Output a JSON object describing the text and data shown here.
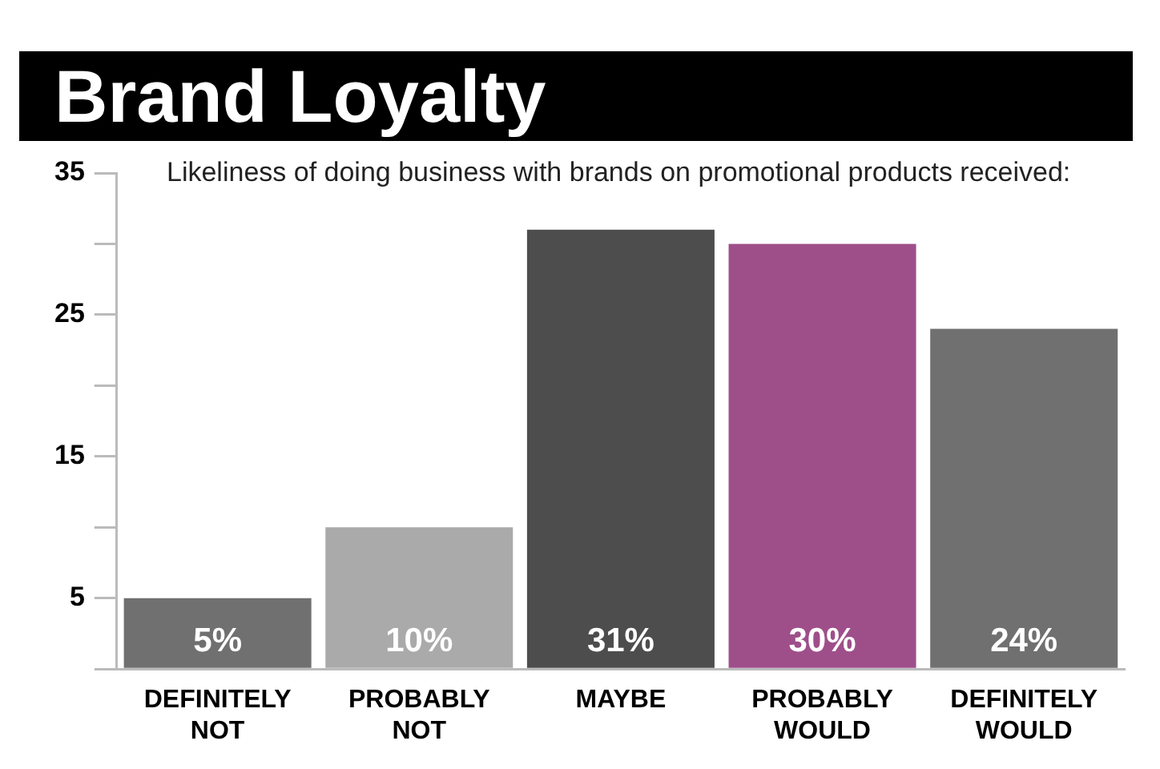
{
  "chart_data": {
    "type": "bar",
    "title": "Brand Loyalty",
    "subtitle": "Likeliness of doing business with brands on promotional products received:",
    "categories": [
      "DEFINITELY NOT",
      "PROBABLY NOT",
      "MAYBE",
      "PROBABLY WOULD",
      "DEFINITELY WOULD"
    ],
    "values": [
      5,
      10,
      31,
      30,
      24
    ],
    "colors": [
      "#707070",
      "#aaaaaa",
      "#4d4d4d",
      "#9e4f8a",
      "#707070"
    ],
    "value_labels": [
      "5%",
      "10%",
      "31%",
      "30%",
      "24%"
    ],
    "ylim": [
      0,
      35
    ],
    "yticks": [
      {
        "value": 0,
        "label": null
      },
      5,
      {
        "value": 10,
        "label": null
      },
      15,
      {
        "value": 20,
        "label": null
      },
      25,
      {
        "value": 30,
        "label": null
      },
      35
    ],
    "legend": false
  }
}
